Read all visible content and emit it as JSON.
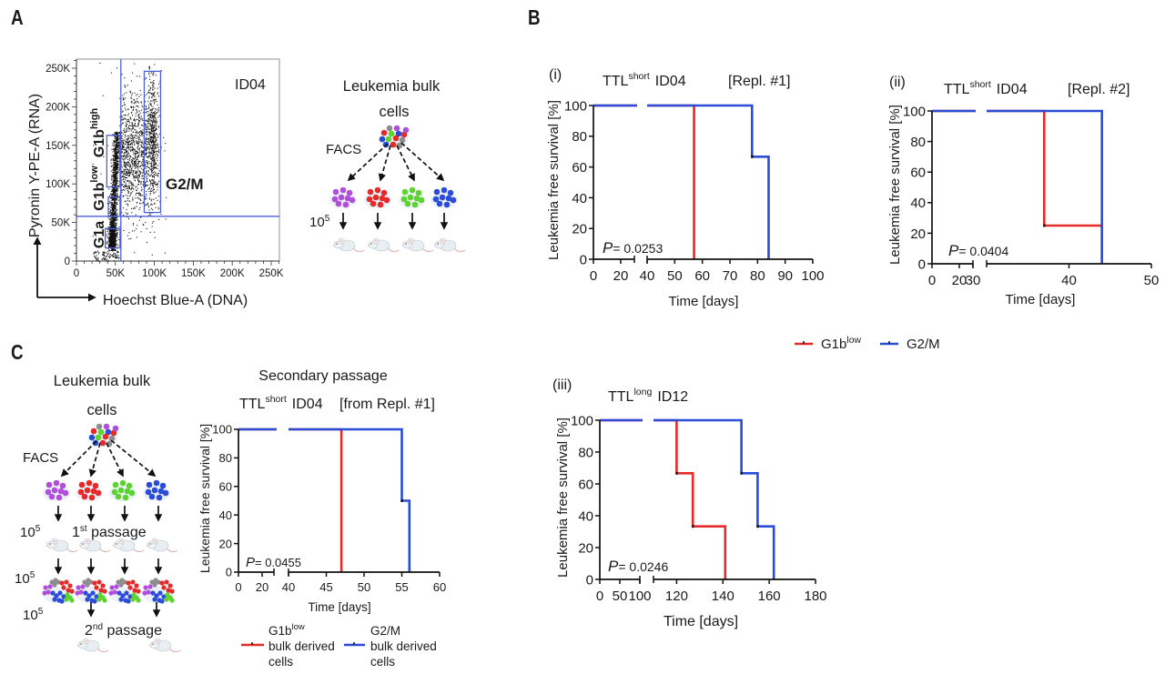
{
  "figure": {
    "panel_labels": {
      "A": "A",
      "B": "B",
      "C": "C"
    },
    "panel_label_color": "#1b8080"
  },
  "colors": {
    "g1a": "#b04fd9",
    "g1b_low": "#e62a2a",
    "g1b_high": "#5cd32f",
    "g2m": "#2b4cd6",
    "gate": "#4d5fd9",
    "bulk_gray": "#8d8d8d"
  },
  "diagram_a": {
    "title_line1": "Leukemia bulk",
    "title_line2": "cells",
    "method": "FACS",
    "dose": {
      "base": "10",
      "exp": "5"
    },
    "fractions": [
      "G1a",
      "G1b low",
      "G1b high",
      "G2/M"
    ]
  },
  "diagram_c": {
    "title_line1": "Leukemia bulk",
    "title_line2": "cells",
    "method": "FACS",
    "dose": {
      "base": "10",
      "exp": "5"
    },
    "passage1": {
      "ord": "1",
      "sup": "st",
      "label": " passage"
    },
    "passage2": {
      "ord": "2",
      "sup": "nd",
      "label": " passage"
    }
  },
  "legend_b": {
    "placement": "below-B-ii",
    "items": [
      {
        "label": "G1b",
        "sup": "low",
        "color": "#e62a2a"
      },
      {
        "label": "G2/M",
        "sup": "",
        "color": "#2b4cd6"
      }
    ]
  },
  "legend_c": {
    "placement": "bottom",
    "items": [
      {
        "label": "G1b",
        "sup": "low",
        "line2": "bulk derived",
        "line3": "cells",
        "color": "#e62a2a"
      },
      {
        "label": "G2/M",
        "sup": "",
        "line2": "bulk derived",
        "line3": "cells",
        "color": "#2b4cd6"
      }
    ]
  },
  "chart_data": [
    {
      "id": "A",
      "type": "scatter",
      "annotation": "ID04",
      "xlabel": "Hoechst Blue-A (DNA)",
      "ylabel": "Pyronin Y-PE-A (RNA)",
      "xlim": [
        0,
        261000
      ],
      "ylim": [
        0,
        262000
      ],
      "xticks": [
        0,
        50000,
        100000,
        150000,
        200000,
        250000
      ],
      "xtick_labels": [
        "0",
        "50K",
        "100K",
        "150K",
        "200K",
        "250K"
      ],
      "yticks": [
        0,
        50000,
        100000,
        150000,
        200000,
        250000
      ],
      "ytick_labels": [
        "0",
        "50K",
        "100K",
        "150K",
        "200K",
        "250K"
      ],
      "grid": false,
      "legend": "none",
      "threshold_lines": {
        "x": 57000,
        "y": 58000
      },
      "gates": [
        {
          "name": "G1a",
          "label": "G1a",
          "sup": "",
          "color": "#b04fd9",
          "x": [
            37000,
            56000
          ],
          "y": [
            17000,
            42000
          ]
        },
        {
          "name": "G1b low",
          "label": "G1b",
          "sup": "low",
          "color": "#e62a2a",
          "x": [
            41000,
            56000
          ],
          "y": [
            58000,
            83000
          ]
        },
        {
          "name": "G1b high",
          "label": "G1b",
          "sup": "high",
          "color": "#5cd32f",
          "x": [
            39000,
            56000
          ],
          "y": [
            96000,
            163000
          ]
        },
        {
          "name": "G2/M",
          "label": "G2/M",
          "sup": "",
          "color": "#2b4cd6",
          "x": [
            87000,
            108000
          ],
          "y": [
            63000,
            246000
          ]
        }
      ],
      "populations": [
        {
          "name": "G1 streak",
          "count": 1500,
          "x": {
            "dist": "normal",
            "mean": 44000,
            "sd": 2300
          },
          "x_shift_per_y": 0.045,
          "y": {
            "dist": "power",
            "min": 18000,
            "max": 168000,
            "exponent": 1.5
          }
        },
        {
          "name": "G1a",
          "count": 250,
          "x": {
            "dist": "normal",
            "mean": 46000,
            "sd": 3000
          },
          "y": {
            "dist": "uniform",
            "min": 14000,
            "max": 45000
          }
        },
        {
          "name": "S phase",
          "count": 1000,
          "x": {
            "dist": "uniform",
            "min": 55000,
            "max": 90000
          },
          "y": {
            "dist": "normal",
            "mean": 140000,
            "sd": 38000
          }
        },
        {
          "name": "G2/M",
          "count": 650,
          "x": {
            "dist": "normal",
            "mean": 97000,
            "sd": 3800
          },
          "y": {
            "dist": "normal",
            "mean": 155000,
            "sd": 42000
          }
        },
        {
          "name": "debris",
          "count": 90,
          "x": {
            "dist": "uniform",
            "min": 22000,
            "max": 55000
          },
          "y": {
            "dist": "uniform",
            "min": 0,
            "max": 14000
          }
        },
        {
          "name": "outliers",
          "count": 60,
          "x": {
            "dist": "uniform",
            "min": 20000,
            "max": 115000
          },
          "y": {
            "dist": "uniform",
            "min": 0,
            "max": 258000
          }
        }
      ]
    },
    {
      "id": "B-i",
      "panel": "(i)",
      "type": "line",
      "style": "step",
      "title": {
        "main": "TTL",
        "sup": "short",
        "rest": "ID04"
      },
      "subtitle": "[Repl. #1]",
      "xlabel": "Time [days]",
      "ylabel": "Leukemia free survival [%]",
      "ylim": [
        0,
        100
      ],
      "yticks": [
        0,
        20,
        40,
        60,
        80,
        100
      ],
      "x_segments": [
        {
          "range": [
            0,
            30
          ],
          "ticks": [
            0,
            20
          ]
        },
        {
          "range": [
            40,
            100
          ],
          "ticks": [
            40,
            50,
            60,
            70,
            80,
            90,
            100
          ]
        }
      ],
      "p_value": {
        "symbol": "P",
        "text": "= 0.0253"
      },
      "series": [
        {
          "name": "G1b low",
          "color": "#e62a2a",
          "points": [
            [
              0,
              100
            ],
            [
              57,
              100
            ],
            [
              57,
              0
            ]
          ]
        },
        {
          "name": "G2/M",
          "color": "#2b4cd6",
          "points": [
            [
              0,
              100
            ],
            [
              78,
              100
            ],
            [
              78,
              66.7
            ],
            [
              84,
              66.7
            ],
            [
              84,
              0
            ]
          ]
        }
      ]
    },
    {
      "id": "B-ii",
      "panel": "(ii)",
      "type": "line",
      "style": "step",
      "title": {
        "main": "TTL",
        "sup": "short",
        "rest": "ID04"
      },
      "subtitle": "[Repl. #2]",
      "xlabel": "Time [days]",
      "ylabel": "Leukemia free survival [%]",
      "ylim": [
        0,
        100
      ],
      "yticks": [
        0,
        20,
        40,
        60,
        80,
        100
      ],
      "x_segments": [
        {
          "range": [
            0,
            30
          ],
          "ticks": [
            0,
            20
          ]
        },
        {
          "range": [
            30,
            50
          ],
          "ticks": [
            30,
            40,
            50
          ]
        }
      ],
      "p_value": {
        "symbol": "P",
        "text": "= 0.0404"
      },
      "series": [
        {
          "name": "G1b low",
          "color": "#e62a2a",
          "points": [
            [
              0,
              100
            ],
            [
              37,
              100
            ],
            [
              37,
              25
            ],
            [
              44,
              25
            ],
            [
              44,
              0
            ]
          ]
        },
        {
          "name": "G2/M",
          "color": "#2b4cd6",
          "points": [
            [
              0,
              100
            ],
            [
              44,
              100
            ],
            [
              44,
              0
            ]
          ]
        }
      ]
    },
    {
      "id": "B-iii",
      "panel": "(iii)",
      "type": "line",
      "style": "step",
      "title": {
        "main": "TTL",
        "sup": "long",
        "rest": "ID12"
      },
      "subtitle": "",
      "xlabel": "Time [days]",
      "ylabel": "Leukemia free survival [%]",
      "ylim": [
        0,
        100
      ],
      "yticks": [
        0,
        20,
        40,
        60,
        80,
        100
      ],
      "x_segments": [
        {
          "range": [
            0,
            100
          ],
          "ticks": [
            0,
            50,
            100
          ]
        },
        {
          "range": [
            110,
            180
          ],
          "ticks": [
            120,
            140,
            160,
            180
          ]
        }
      ],
      "p_value": {
        "symbol": "P",
        "text": "= 0.0246"
      },
      "series": [
        {
          "name": "G1b low",
          "color": "#e62a2a",
          "points": [
            [
              0,
              100
            ],
            [
              120,
              100
            ],
            [
              120,
              66.7
            ],
            [
              127,
              66.7
            ],
            [
              127,
              33.3
            ],
            [
              141,
              33.3
            ],
            [
              141,
              0
            ]
          ]
        },
        {
          "name": "G2/M",
          "color": "#2b4cd6",
          "points": [
            [
              0,
              100
            ],
            [
              148,
              100
            ],
            [
              148,
              66.7
            ],
            [
              155,
              66.7
            ],
            [
              155,
              33.3
            ],
            [
              162,
              33.3
            ],
            [
              162,
              0
            ]
          ]
        }
      ]
    },
    {
      "id": "C",
      "type": "line",
      "style": "step",
      "heading": "Secondary passage",
      "title": {
        "main": "TTL",
        "sup": "short",
        "rest": "ID04"
      },
      "subtitle": "[from Repl. #1]",
      "xlabel": "Time [days]",
      "ylabel": "Leukemia free survival [%]",
      "ylim": [
        0,
        100
      ],
      "yticks": [
        0,
        20,
        40,
        60,
        80,
        100
      ],
      "x_segments": [
        {
          "range": [
            0,
            30
          ],
          "ticks": [
            0,
            20
          ]
        },
        {
          "range": [
            40,
            60
          ],
          "ticks": [
            40,
            45,
            50,
            55,
            60
          ]
        }
      ],
      "p_value": {
        "symbol": "P",
        "text": "= 0.0455"
      },
      "series": [
        {
          "name": "G1b low bulk derived cells",
          "color": "#e62a2a",
          "points": [
            [
              0,
              100
            ],
            [
              47,
              100
            ],
            [
              47,
              0
            ]
          ]
        },
        {
          "name": "G2/M bulk derived cells",
          "color": "#2b4cd6",
          "points": [
            [
              0,
              100
            ],
            [
              55,
              100
            ],
            [
              55,
              50
            ],
            [
              56,
              50
            ],
            [
              56,
              0
            ]
          ]
        }
      ]
    }
  ]
}
